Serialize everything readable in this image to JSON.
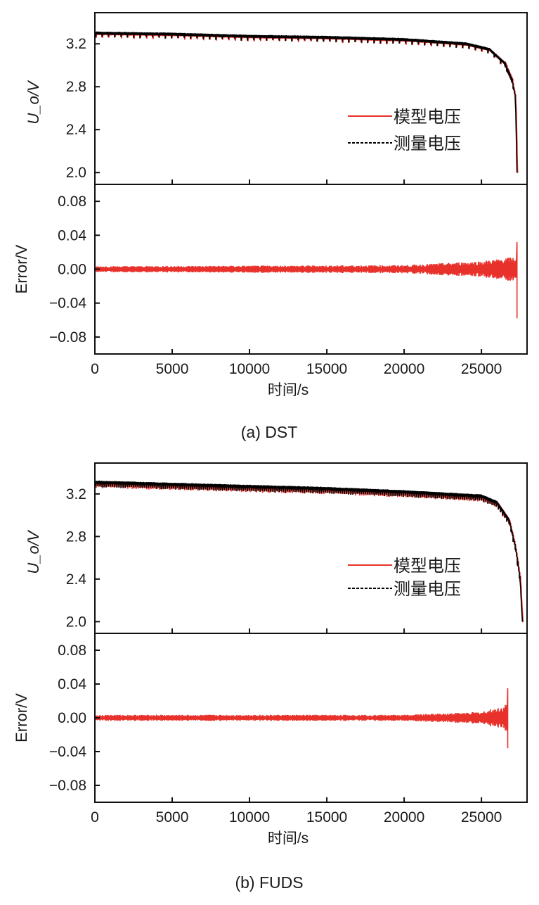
{
  "chart_data": [
    {
      "type": "line",
      "caption": "(a) DST",
      "xlabel": "时间/s",
      "xlim": [
        0,
        27950
      ],
      "xticks": [
        "0",
        "5000",
        "10000",
        "15000",
        "20000",
        "25000"
      ],
      "subplots": [
        {
          "ylabel": "U_o/V",
          "ylabel_main": "U",
          "ylabel_sub": "o",
          "ylabel_unit": "/V",
          "ylim": [
            1.89,
            3.49
          ],
          "yticks": [
            "2.0",
            "2.4",
            "2.8",
            "3.2"
          ],
          "legend": {
            "placement": "right",
            "entries": [
              "模型电压",
              "测量电压"
            ]
          },
          "series": [
            {
              "name": "模型电压",
              "color": "#e8312b",
              "style": "solid",
              "x": [
                0,
                5000,
                10000,
                15000,
                20000,
                24000,
                25500,
                26500,
                27000,
                27200,
                27300
              ],
              "y": [
                3.3,
                3.29,
                3.27,
                3.26,
                3.24,
                3.2,
                3.15,
                3.02,
                2.85,
                2.7,
                2.0
              ],
              "oscillation_amplitude": 0.04
            },
            {
              "name": "测量电压",
              "color": "#000000",
              "style": "dashed",
              "x": [
                0,
                5000,
                10000,
                15000,
                20000,
                24000,
                25500,
                26500,
                27000,
                27200,
                27300
              ],
              "y": [
                3.3,
                3.29,
                3.27,
                3.26,
                3.24,
                3.2,
                3.15,
                3.02,
                2.85,
                2.7,
                2.0
              ],
              "oscillation_amplitude": 0.04
            }
          ]
        },
        {
          "ylabel": "Error/V",
          "ylim": [
            -0.1,
            0.1
          ],
          "yticks": [
            "0.08",
            "0.04",
            "0.00",
            "−0.04",
            "−0.08"
          ],
          "series": [
            {
              "color": "#e8312b",
              "style": "solid",
              "x": [
                0,
                20000,
                25000,
                27000,
                27250
              ],
              "amplitude": [
                0.003,
                0.004,
                0.008,
                0.012,
                0.012
              ],
              "spike_x": 27300,
              "spike_max": 0.032,
              "spike_min": -0.058
            }
          ]
        }
      ]
    },
    {
      "type": "line",
      "caption": "(b) FUDS",
      "xlabel": "时间/s",
      "xlim": [
        0,
        27950
      ],
      "xticks": [
        "0",
        "5000",
        "10000",
        "15000",
        "20000",
        "25000"
      ],
      "subplots": [
        {
          "ylabel": "U_o/V",
          "ylabel_main": "U",
          "ylabel_sub": "o",
          "ylabel_unit": "/V",
          "ylim": [
            1.89,
            3.49
          ],
          "yticks": [
            "2.0",
            "2.4",
            "2.8",
            "3.2"
          ],
          "legend": {
            "placement": "right",
            "entries": [
              "模型电压",
              "测量电压"
            ]
          },
          "series": [
            {
              "name": "模型电压",
              "color": "#e8312b",
              "style": "solid",
              "x": [
                0,
                5000,
                10000,
                15000,
                20000,
                25000,
                26000,
                26800,
                27200,
                27500,
                27650
              ],
              "y": [
                3.31,
                3.29,
                3.27,
                3.25,
                3.22,
                3.18,
                3.12,
                2.95,
                2.7,
                2.4,
                2.0
              ],
              "oscillation_amplitude": 0.045
            },
            {
              "name": "测量电压",
              "color": "#000000",
              "style": "dashed",
              "x": [
                0,
                5000,
                10000,
                15000,
                20000,
                25000,
                26000,
                26800,
                27200,
                27500,
                27650
              ],
              "y": [
                3.31,
                3.29,
                3.27,
                3.25,
                3.22,
                3.18,
                3.12,
                2.95,
                2.7,
                2.4,
                2.0
              ],
              "oscillation_amplitude": 0.045
            }
          ]
        },
        {
          "ylabel": "Error/V",
          "ylim": [
            -0.1,
            0.1
          ],
          "yticks": [
            "0.08",
            "0.04",
            "0.00",
            "−0.04",
            "−0.08"
          ],
          "series": [
            {
              "color": "#e8312b",
              "style": "solid",
              "x": [
                0,
                20000,
                25000,
                26500,
                26650
              ],
              "amplitude": [
                0.003,
                0.003,
                0.006,
                0.012,
                0.015
              ],
              "spike_x": 26700,
              "spike_max": 0.035,
              "spike_min": -0.036
            }
          ]
        }
      ]
    }
  ]
}
